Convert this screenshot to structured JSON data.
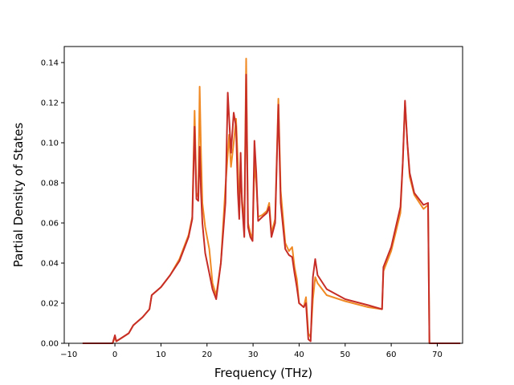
{
  "chart_data": {
    "type": "line",
    "title": "",
    "xlabel": "Frequency (THz)",
    "ylabel": "Partial Density of States",
    "xlim": [
      -11,
      75.5
    ],
    "ylim": [
      0,
      0.148
    ],
    "xticks": [
      -10,
      0,
      10,
      20,
      30,
      40,
      50,
      60,
      70
    ],
    "xtick_labels": [
      "−10",
      "0",
      "10",
      "20",
      "30",
      "40",
      "50",
      "60",
      "70"
    ],
    "yticks": [
      0.0,
      0.02,
      0.04,
      0.06,
      0.08,
      0.1,
      0.12,
      0.14
    ],
    "ytick_labels": [
      "0.00",
      "0.02",
      "0.04",
      "0.06",
      "0.08",
      "0.10",
      "0.12",
      "0.14"
    ],
    "grid": false,
    "legend": "none",
    "series": [
      {
        "color": "#f08a24",
        "points": [
          [
            -7,
            0
          ],
          [
            -0.5,
            0
          ],
          [
            0,
            0.003
          ],
          [
            0.3,
            0.001
          ],
          [
            1,
            0.002
          ],
          [
            3,
            0.005
          ],
          [
            4,
            0.009
          ],
          [
            6,
            0.013
          ],
          [
            7.5,
            0.017
          ],
          [
            8,
            0.024
          ],
          [
            10,
            0.028
          ],
          [
            12,
            0.034
          ],
          [
            14,
            0.042
          ],
          [
            16,
            0.054
          ],
          [
            16.8,
            0.063
          ],
          [
            17.3,
            0.116
          ],
          [
            17.7,
            0.075
          ],
          [
            18.1,
            0.073
          ],
          [
            18.4,
            0.128
          ],
          [
            18.7,
            0.095
          ],
          [
            19,
            0.07
          ],
          [
            19.6,
            0.058
          ],
          [
            20.5,
            0.047
          ],
          [
            21.2,
            0.03
          ],
          [
            22,
            0.024
          ],
          [
            23,
            0.04
          ],
          [
            24,
            0.078
          ],
          [
            24.8,
            0.104
          ],
          [
            25.2,
            0.088
          ],
          [
            25.8,
            0.1
          ],
          [
            26.3,
            0.112
          ],
          [
            26.7,
            0.09
          ],
          [
            27,
            0.065
          ],
          [
            27.3,
            0.085
          ],
          [
            27.6,
            0.072
          ],
          [
            28.1,
            0.06
          ],
          [
            28.5,
            0.142
          ],
          [
            28.9,
            0.06
          ],
          [
            29.4,
            0.055
          ],
          [
            29.9,
            0.052
          ],
          [
            30.3,
            0.09
          ],
          [
            30.7,
            0.08
          ],
          [
            31.1,
            0.063
          ],
          [
            32,
            0.064
          ],
          [
            33,
            0.066
          ],
          [
            33.5,
            0.07
          ],
          [
            34,
            0.055
          ],
          [
            34.8,
            0.062
          ],
          [
            35.5,
            0.122
          ],
          [
            36,
            0.076
          ],
          [
            37,
            0.05
          ],
          [
            37.8,
            0.046
          ],
          [
            38.5,
            0.048
          ],
          [
            39,
            0.038
          ],
          [
            39.5,
            0.032
          ],
          [
            40,
            0.02
          ],
          [
            41,
            0.018
          ],
          [
            41.5,
            0.023
          ],
          [
            42,
            0.005
          ],
          [
            42.5,
            0.003
          ],
          [
            43,
            0.022
          ],
          [
            43.5,
            0.033
          ],
          [
            44,
            0.03
          ],
          [
            46,
            0.024
          ],
          [
            50,
            0.021
          ],
          [
            55,
            0.018
          ],
          [
            58,
            0.017
          ],
          [
            58.3,
            0.036
          ],
          [
            60,
            0.046
          ],
          [
            62,
            0.065
          ],
          [
            62.5,
            0.09
          ],
          [
            63,
            0.12
          ],
          [
            63.5,
            0.1
          ],
          [
            64,
            0.083
          ],
          [
            65,
            0.074
          ],
          [
            67,
            0.067
          ],
          [
            68,
            0.069
          ],
          [
            68.3,
            0.0
          ],
          [
            75,
            0.0
          ]
        ]
      },
      {
        "color": "#c62d27",
        "points": [
          [
            -7,
            0
          ],
          [
            -0.5,
            0
          ],
          [
            0,
            0.004
          ],
          [
            0.3,
            0.001
          ],
          [
            1,
            0.002
          ],
          [
            3,
            0.005
          ],
          [
            4,
            0.009
          ],
          [
            6,
            0.013
          ],
          [
            7.5,
            0.017
          ],
          [
            8,
            0.024
          ],
          [
            10,
            0.028
          ],
          [
            12,
            0.034
          ],
          [
            14,
            0.041
          ],
          [
            16,
            0.053
          ],
          [
            16.8,
            0.062
          ],
          [
            17.3,
            0.108
          ],
          [
            17.7,
            0.072
          ],
          [
            18.1,
            0.071
          ],
          [
            18.4,
            0.098
          ],
          [
            18.7,
            0.075
          ],
          [
            19,
            0.06
          ],
          [
            19.6,
            0.045
          ],
          [
            20.5,
            0.035
          ],
          [
            21.2,
            0.027
          ],
          [
            22,
            0.022
          ],
          [
            23,
            0.04
          ],
          [
            24,
            0.07
          ],
          [
            24.5,
            0.125
          ],
          [
            25.2,
            0.095
          ],
          [
            25.8,
            0.115
          ],
          [
            26.3,
            0.108
          ],
          [
            26.7,
            0.075
          ],
          [
            27,
            0.062
          ],
          [
            27.3,
            0.095
          ],
          [
            27.6,
            0.07
          ],
          [
            28.1,
            0.053
          ],
          [
            28.5,
            0.134
          ],
          [
            28.9,
            0.058
          ],
          [
            29.4,
            0.053
          ],
          [
            29.9,
            0.051
          ],
          [
            30.3,
            0.101
          ],
          [
            30.7,
            0.085
          ],
          [
            31.1,
            0.061
          ],
          [
            32,
            0.063
          ],
          [
            33,
            0.065
          ],
          [
            33.5,
            0.068
          ],
          [
            34,
            0.053
          ],
          [
            34.8,
            0.06
          ],
          [
            35.5,
            0.119
          ],
          [
            36,
            0.07
          ],
          [
            37,
            0.047
          ],
          [
            37.8,
            0.044
          ],
          [
            38.5,
            0.043
          ],
          [
            39,
            0.035
          ],
          [
            39.5,
            0.028
          ],
          [
            40,
            0.02
          ],
          [
            41,
            0.018
          ],
          [
            41.5,
            0.02
          ],
          [
            42,
            0.002
          ],
          [
            42.5,
            0.001
          ],
          [
            43,
            0.033
          ],
          [
            43.5,
            0.042
          ],
          [
            44,
            0.034
          ],
          [
            46,
            0.027
          ],
          [
            50,
            0.022
          ],
          [
            55,
            0.019
          ],
          [
            58,
            0.017
          ],
          [
            58.3,
            0.038
          ],
          [
            60,
            0.048
          ],
          [
            62,
            0.068
          ],
          [
            62.5,
            0.09
          ],
          [
            63,
            0.121
          ],
          [
            63.5,
            0.1
          ],
          [
            64,
            0.085
          ],
          [
            65,
            0.075
          ],
          [
            67,
            0.069
          ],
          [
            68,
            0.07
          ],
          [
            68.3,
            0.0
          ],
          [
            75,
            0.0
          ]
        ]
      }
    ]
  }
}
